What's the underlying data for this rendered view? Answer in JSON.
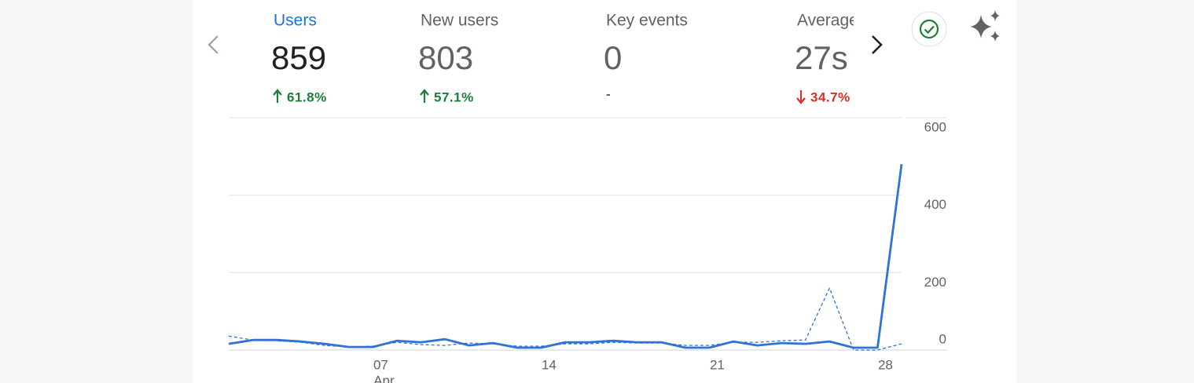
{
  "metrics": [
    {
      "name": "Users",
      "value": 859,
      "change": "61.8%",
      "direction": "up",
      "selected": true
    },
    {
      "name": "New users",
      "value": 803,
      "change": "57.1%",
      "direction": "up",
      "selected": false
    },
    {
      "name": "Key events",
      "value": 0,
      "change": "-",
      "selected": false
    },
    {
      "name": "Average engagement time",
      "value": "27s",
      "change": "34.7%",
      "direction": "down",
      "selected": false
    }
  ],
  "chart_data": {
    "type": "line",
    "categories": [
      null,
      null,
      null,
      null,
      null,
      null,
      "07",
      null,
      null,
      null,
      null,
      null,
      null,
      "14",
      null,
      null,
      null,
      null,
      null,
      null,
      "21",
      null,
      null,
      null,
      null,
      null,
      null,
      "28",
      null
    ],
    "x_month_label": "Apr",
    "series": [
      {
        "color": "#2f72d8",
        "style": "solid",
        "values": [
          16,
          26,
          26,
          22,
          16,
          8,
          8,
          24,
          20,
          28,
          12,
          18,
          6,
          6,
          20,
          20,
          24,
          20,
          20,
          6,
          6,
          22,
          12,
          18,
          16,
          22,
          6,
          6,
          480
        ]
      },
      {
        "color": "#2f72d8",
        "style": "dashed",
        "values": [
          36,
          26,
          24,
          20,
          12,
          8,
          10,
          20,
          14,
          12,
          18,
          16,
          10,
          10,
          16,
          16,
          20,
          18,
          18,
          12,
          12,
          20,
          20,
          24,
          26,
          160,
          0,
          0,
          16
        ]
      }
    ],
    "ylim": [
      0,
      600
    ],
    "yticks": [
      0,
      200,
      400,
      600
    ],
    "grid": true
  }
}
